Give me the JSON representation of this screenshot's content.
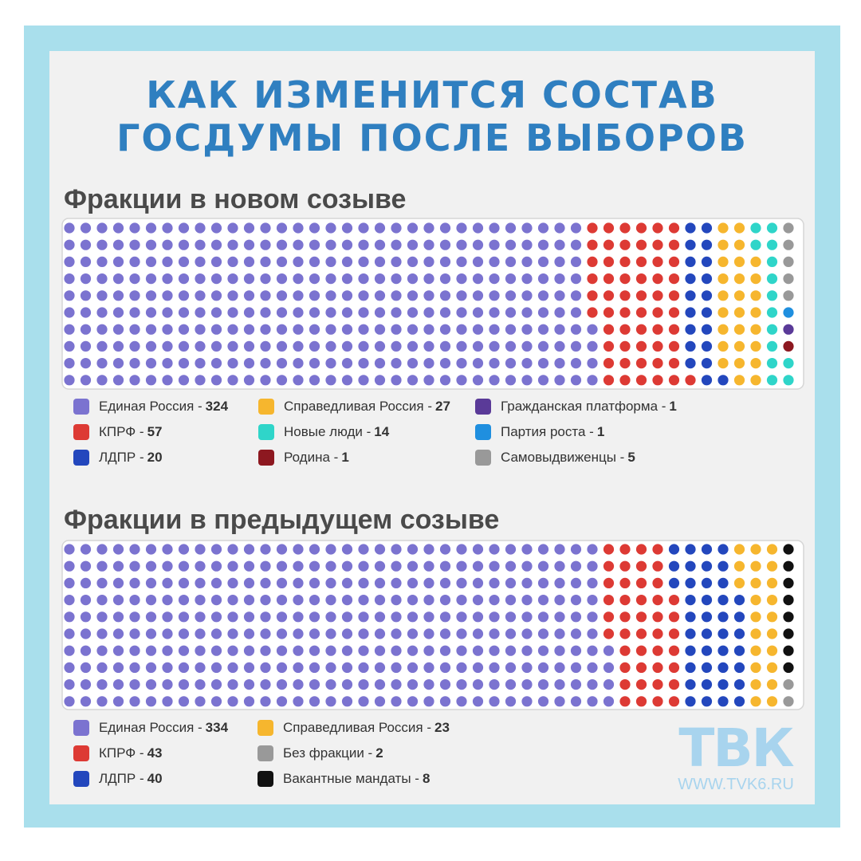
{
  "title": "Как изменится состав Госдумы после выборов",
  "brand": {
    "logo": "ТВК",
    "url": "WWW.TVK6.RU"
  },
  "colors": {
    "united_russia": "#7b73d0",
    "kprf": "#dd3a34",
    "ldpr": "#2347bd",
    "fair_russia": "#f6b62e",
    "new_people": "#2fd5c9",
    "rodina": "#8d1820",
    "civic_platform": "#5a3a98",
    "growth_party": "#1f8fdf",
    "independents": "#999999",
    "no_faction": "#999999",
    "vacant": "#111111"
  },
  "chart_data": [
    {
      "type": "waffle",
      "title": "Фракции в новом созыве",
      "series": [
        {
          "name": "Единая Россия",
          "value": 324,
          "color": "#7b73d0"
        },
        {
          "name": "КПРФ",
          "value": 57,
          "color": "#dd3a34"
        },
        {
          "name": "ЛДПР",
          "value": 20,
          "color": "#2347bd"
        },
        {
          "name": "Справедливая Россия",
          "value": 27,
          "color": "#f6b62e"
        },
        {
          "name": "Новые люди",
          "value": 14,
          "color": "#2fd5c9"
        },
        {
          "name": "Родина",
          "value": 1,
          "color": "#8d1820"
        },
        {
          "name": "Гражданская платформа",
          "value": 1,
          "color": "#5a3a98"
        },
        {
          "name": "Партия роста",
          "value": 1,
          "color": "#1f8fdf"
        },
        {
          "name": "Самовыдвиженцы",
          "value": 5,
          "color": "#999999"
        }
      ],
      "legend_rows": [
        [
          "Единая Россия - ",
          "324"
        ],
        [
          "КПРФ - ",
          "57"
        ],
        [
          "ЛДПР - ",
          "20"
        ],
        [
          "Справедливая Россия - ",
          "27"
        ],
        [
          "Новые люди - ",
          "14"
        ],
        [
          "Родина - ",
          "1"
        ],
        [
          "Гражданская платформа - ",
          "1"
        ],
        [
          "Партия роста - ",
          "1"
        ],
        [
          "Самовыдвиженцы - ",
          "5"
        ]
      ]
    },
    {
      "type": "waffle",
      "title": "Фракции в предыдущем созыве",
      "series": [
        {
          "name": "Единая Россия",
          "value": 334,
          "color": "#7b73d0"
        },
        {
          "name": "КПРФ",
          "value": 43,
          "color": "#dd3a34"
        },
        {
          "name": "ЛДПР",
          "value": 40,
          "color": "#2347bd"
        },
        {
          "name": "Справедливая Россия",
          "value": 23,
          "color": "#f6b62e"
        },
        {
          "name": "Без фракции",
          "value": 2,
          "color": "#999999"
        },
        {
          "name": "Вакантные мандаты",
          "value": 8,
          "color": "#111111"
        }
      ],
      "legend_rows": [
        [
          "Единая Россия - ",
          "334"
        ],
        [
          "КПРФ - ",
          "43"
        ],
        [
          "ЛДПР - ",
          "40"
        ],
        [
          "Справедливая Россия - ",
          "23"
        ],
        [
          "Без фракции - ",
          "2"
        ],
        [
          "Вакантные мандаты - ",
          "8"
        ]
      ]
    }
  ]
}
